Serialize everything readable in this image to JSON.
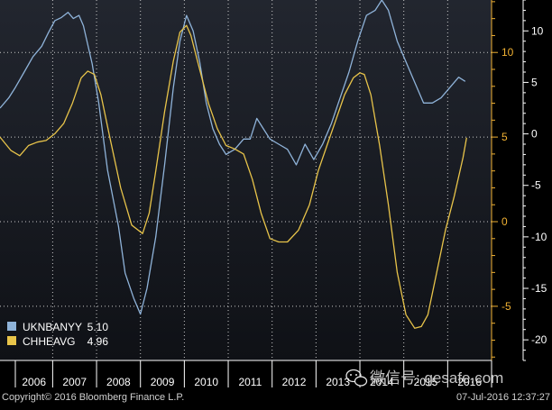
{
  "chart_data": {
    "type": "line",
    "x_labels": [
      "2006",
      "2007",
      "2008",
      "2009",
      "2010",
      "2011",
      "2012",
      "2013",
      "2014",
      "2015",
      "2016"
    ],
    "left_axis": {
      "ticks": [
        10,
        5,
        0,
        -5
      ],
      "tick_labels": [
        "10",
        "5",
        "0",
        "-5"
      ],
      "range": [
        -8.2,
        13.1
      ],
      "color": "#f2b233"
    },
    "right_axis": {
      "ticks": [
        10,
        5,
        0,
        -5,
        -10,
        -15,
        -20
      ],
      "tick_labels": [
        "10",
        "5",
        "0",
        "-5",
        "-10",
        "-15",
        "-20"
      ],
      "range": [
        -22,
        13
      ],
      "color": "#ffffff"
    },
    "grid": true,
    "legend_position": "bottom-left",
    "series": [
      {
        "name": "UKNBANYY",
        "last_value": "5.10",
        "axis": "right",
        "color": "#8fb3d9",
        "x": [
          2005.75,
          2005.95,
          2006.1,
          2006.3,
          2006.5,
          2006.7,
          2006.85,
          2007.0,
          2007.15,
          2007.3,
          2007.42,
          2007.55,
          2007.65,
          2007.85,
          2008.0,
          2008.2,
          2008.45,
          2008.6,
          2008.8,
          2008.95,
          2009.1,
          2009.3,
          2009.5,
          2009.7,
          2009.85,
          2010.0,
          2010.15,
          2010.3,
          2010.45,
          2010.6,
          2010.75,
          2010.9,
          2011.1,
          2011.3,
          2011.45,
          2011.6,
          2011.75,
          2011.9,
          2012.1,
          2012.3,
          2012.5,
          2012.7,
          2012.9,
          2013.1,
          2013.3,
          2013.5,
          2013.7,
          2013.9,
          2014.1,
          2014.3,
          2014.45,
          2014.6,
          2014.8,
          2015.0,
          2015.2,
          2015.4,
          2015.6,
          2015.8,
          2016.0,
          2016.2,
          2016.35
        ],
        "y": [
          2.5,
          3.5,
          4.5,
          6.0,
          7.5,
          8.5,
          9.8,
          11.0,
          11.3,
          11.8,
          11.2,
          11.5,
          10.5,
          6.8,
          3.0,
          -3.5,
          -9.0,
          -13.5,
          -16.0,
          -17.5,
          -15.0,
          -10.0,
          -3.0,
          4.5,
          9.0,
          11.5,
          10.0,
          7.0,
          3.0,
          0.5,
          -1.0,
          -2.0,
          -1.5,
          -0.5,
          -0.5,
          1.5,
          0.5,
          -0.5,
          -1.0,
          -1.5,
          -3.0,
          -1.0,
          -2.5,
          -1.0,
          1.0,
          3.5,
          6.0,
          9.0,
          11.5,
          12.0,
          13.0,
          12.0,
          9.0,
          7.0,
          5.0,
          3.0,
          3.0,
          3.5,
          4.5,
          5.5,
          5.1
        ]
      },
      {
        "name": "CHHEAVG",
        "last_value": "4.96",
        "axis": "left",
        "color": "#e8c44a",
        "x": [
          2005.75,
          2006.0,
          2006.2,
          2006.4,
          2006.6,
          2006.8,
          2007.0,
          2007.2,
          2007.4,
          2007.6,
          2007.75,
          2007.9,
          2008.05,
          2008.25,
          2008.5,
          2008.75,
          2009.0,
          2009.15,
          2009.3,
          2009.5,
          2009.7,
          2009.85,
          2010.0,
          2010.1,
          2010.2,
          2010.35,
          2010.5,
          2010.7,
          2010.9,
          2011.1,
          2011.3,
          2011.5,
          2011.7,
          2011.9,
          2012.1,
          2012.3,
          2012.55,
          2012.8,
          2013.0,
          2013.2,
          2013.4,
          2013.6,
          2013.8,
          2013.95,
          2014.05,
          2014.2,
          2014.4,
          2014.6,
          2014.8,
          2015.0,
          2015.2,
          2015.35,
          2015.5,
          2015.7,
          2015.9,
          2016.1,
          2016.3,
          2016.38
        ],
        "y": [
          5.0,
          4.2,
          3.9,
          4.5,
          4.7,
          4.8,
          5.2,
          5.8,
          7.0,
          8.5,
          8.9,
          8.7,
          7.5,
          5.0,
          2.0,
          -0.2,
          -0.7,
          0.5,
          3.0,
          6.5,
          9.5,
          11.2,
          11.6,
          11.0,
          10.0,
          8.5,
          7.0,
          5.5,
          4.5,
          4.3,
          4.0,
          2.5,
          0.5,
          -1.0,
          -1.2,
          -1.2,
          -0.5,
          1.0,
          3.0,
          4.5,
          6.0,
          7.5,
          8.5,
          8.8,
          8.7,
          7.5,
          4.5,
          1.0,
          -3.0,
          -5.5,
          -6.3,
          -6.2,
          -5.5,
          -3.0,
          -0.5,
          1.5,
          3.8,
          4.96
        ]
      }
    ]
  },
  "footer": {
    "copyright": "Copyright© 2016 Bloomberg Finance L.P.",
    "timestamp": "07-Jul-2016 12:37:27"
  },
  "watermark": {
    "text": "微信号: gesafe.com"
  }
}
